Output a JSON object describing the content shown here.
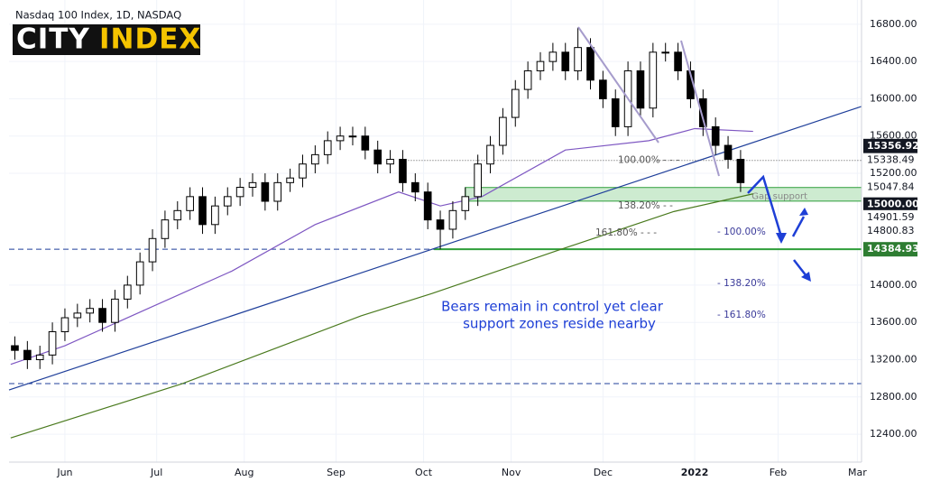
{
  "chart_data": {
    "type": "candlestick",
    "title": "Nasdaq 100 Index, 1D, NASDAQ",
    "logo": [
      "CITY",
      "INDEX"
    ],
    "logo_colors": [
      "#ffffff",
      "#f5c400"
    ],
    "up_color": "#ffffff",
    "down_color": "#000000",
    "grid": true,
    "xlim": [
      -13.4,
      191
    ],
    "ylim": [
      12120,
      17060
    ],
    "xticks": [
      {
        "value": 0,
        "label": "Jun"
      },
      {
        "value": 22,
        "label": "Jul"
      },
      {
        "value": 43,
        "label": "Aug"
      },
      {
        "value": 65,
        "label": "Sep"
      },
      {
        "value": 86,
        "label": "Oct"
      },
      {
        "value": 107,
        "label": "Nov"
      },
      {
        "value": 129,
        "label": "Dec"
      },
      {
        "value": 151,
        "label": "2022"
      },
      {
        "value": 171,
        "label": "Feb"
      },
      {
        "value": 190,
        "label": "Mar"
      }
    ],
    "yticks": [
      {
        "value": 16800,
        "label": "16800.00"
      },
      {
        "value": 16400,
        "label": "16400.00"
      },
      {
        "value": 16000,
        "label": "16000.00"
      },
      {
        "value": 15600,
        "label": "15600.00"
      },
      {
        "value": 15200,
        "label": "15200.00"
      },
      {
        "value": 14000,
        "label": "14000.00"
      },
      {
        "value": 13600,
        "label": "13600.00"
      },
      {
        "value": 13200,
        "label": "13200.00"
      },
      {
        "value": 12800,
        "label": "12800.00"
      },
      {
        "value": 12400,
        "label": "12400.00"
      }
    ],
    "x": [
      -12,
      -9,
      -6,
      -3,
      0,
      3,
      6,
      9,
      12,
      15,
      18,
      21,
      24,
      27,
      30,
      33,
      36,
      39,
      42,
      45,
      48,
      51,
      54,
      57,
      60,
      63,
      66,
      69,
      72,
      75,
      78,
      81,
      84,
      87,
      90,
      93,
      96,
      99,
      102,
      105,
      108,
      111,
      114,
      117,
      120,
      123,
      126,
      129,
      132,
      135,
      138,
      141,
      144,
      147,
      150,
      153,
      156,
      159,
      162
    ],
    "open": [
      13350,
      13300,
      13200,
      13250,
      13500,
      13650,
      13700,
      13750,
      13600,
      13850,
      14000,
      14250,
      14500,
      14700,
      14800,
      14950,
      14650,
      14850,
      14950,
      15050,
      15100,
      14900,
      15100,
      15150,
      15300,
      15400,
      15550,
      15600,
      15600,
      15450,
      15300,
      15350,
      15100,
      15000,
      14700,
      14600,
      14800,
      14950,
      15300,
      15500,
      15800,
      16100,
      16300,
      16400,
      16500,
      16300,
      16550,
      16200,
      16000,
      15700,
      16300,
      15900,
      16500,
      16500,
      16300,
      16000,
      15700,
      15500,
      15350
    ],
    "high": [
      13450,
      13400,
      13350,
      13600,
      13750,
      13800,
      13850,
      13850,
      13950,
      14100,
      14350,
      14600,
      14800,
      14900,
      15050,
      15050,
      14950,
      15050,
      15150,
      15200,
      15200,
      15200,
      15250,
      15400,
      15500,
      15650,
      15700,
      15700,
      15700,
      15550,
      15450,
      15450,
      15200,
      15100,
      14800,
      14900,
      15050,
      15400,
      15600,
      15900,
      16200,
      16400,
      16500,
      16600,
      16600,
      16765,
      16650,
      16300,
      16100,
      16400,
      16400,
      16600,
      16600,
      16600,
      16400,
      16100,
      15800,
      15600,
      15450
    ],
    "low": [
      13200,
      13100,
      13100,
      13150,
      13400,
      13550,
      13600,
      13500,
      13500,
      13750,
      13900,
      14150,
      14400,
      14600,
      14700,
      14550,
      14550,
      14750,
      14850,
      14950,
      14800,
      14800,
      15000,
      15050,
      15200,
      15300,
      15450,
      15500,
      15350,
      15200,
      15200,
      15000,
      14900,
      14600,
      14385,
      14500,
      14700,
      14850,
      15200,
      15400,
      15700,
      16000,
      16200,
      16300,
      16200,
      16200,
      16100,
      15900,
      15600,
      15600,
      15800,
      15800,
      16400,
      16200,
      15900,
      15600,
      15400,
      15250,
      15000
    ],
    "close": [
      13300,
      13200,
      13250,
      13500,
      13650,
      13700,
      13750,
      13600,
      13850,
      14000,
      14250,
      14500,
      14700,
      14800,
      14950,
      14650,
      14850,
      14950,
      15050,
      15100,
      14900,
      15100,
      15150,
      15300,
      15400,
      15550,
      15600,
      15600,
      15450,
      15300,
      15350,
      15100,
      15000,
      14700,
      14600,
      14800,
      14950,
      15300,
      15500,
      15800,
      16100,
      16300,
      16400,
      16500,
      16300,
      16550,
      16200,
      16000,
      15700,
      16300,
      15900,
      16500,
      16500,
      16300,
      16000,
      15700,
      15500,
      15350,
      15100
    ],
    "overlays": [
      {
        "color": "#7e57c2",
        "x": [
          -13,
          0,
          20,
          40,
          60,
          80,
          90,
          100,
          120,
          140,
          151,
          165
        ],
        "values": [
          13150,
          13350,
          13750,
          14150,
          14650,
          15000,
          14850,
          14950,
          15450,
          15550,
          15680,
          15650
        ]
      },
      {
        "color": "#4a7a1e",
        "x": [
          -13,
          28,
          71,
          88,
          118,
          146,
          165
        ],
        "values": [
          12360,
          12940,
          13670,
          13910,
          14370,
          14790,
          14980
        ]
      },
      {
        "color": "#1f3f9a",
        "x": [
          -13.4,
          191
        ],
        "values": [
          12875,
          15918
        ]
      }
    ],
    "levels": [
      {
        "value": 15338.49,
        "style": "dotted",
        "color": "#555555",
        "x": [
          81,
          191
        ]
      },
      {
        "value": 14384.93,
        "style": "dashed",
        "color": "#1f3f9a",
        "x": [
          -13.4,
          191
        ]
      },
      {
        "value": 12943,
        "style": "dashed",
        "color": "#1f3f9a",
        "x": [
          -13.4,
          191
        ]
      },
      {
        "value": 14384.93,
        "style": "solid",
        "color": "#2e9e3a",
        "x": [
          88.5,
          191
        ]
      }
    ],
    "zone": {
      "from": 15047.84,
      "to": 14901.59,
      "x": [
        96,
        191
      ],
      "color": "#cdebd0",
      "label": "Gap support"
    },
    "fib_labels": [
      {
        "value": 15338.49,
        "label": "100.00% - - -"
      },
      {
        "value": 14850,
        "label": "138.20% - -"
      },
      {
        "value": 14560,
        "label": "161.80% - - -"
      },
      {
        "value": 14571,
        "label": "- 100.00%"
      },
      {
        "value": 14018,
        "label": "- 138.20%"
      },
      {
        "value": 13679,
        "label": "- 161.80%"
      }
    ],
    "price_labels": [
      {
        "value": 15356.92,
        "label": "15356.92",
        "bg": "#131722",
        "fg": "#ffffff"
      },
      {
        "value": 15338.49,
        "label": "15338.49",
        "bg": "#ffffff",
        "fg": "#131722"
      },
      {
        "value": 15047.84,
        "label": "15047.84",
        "bg": "#ffffff",
        "fg": "#131722"
      },
      {
        "value": 15000.0,
        "label": "15000.00",
        "bg": "#131722",
        "fg": "#ffffff"
      },
      {
        "value": 14901.59,
        "label": "14901.59",
        "bg": "#ffffff",
        "fg": "#131722"
      },
      {
        "value": 14800.83,
        "label": "14800.83",
        "bg": "#ffffff",
        "fg": "#131722"
      },
      {
        "value": 14384.93,
        "label": "14384.93",
        "bg": "#2e7d32",
        "fg": "#ffffff"
      }
    ],
    "annotation": [
      "Bears remain in control yet clear",
      "support zones reside nearby"
    ]
  }
}
